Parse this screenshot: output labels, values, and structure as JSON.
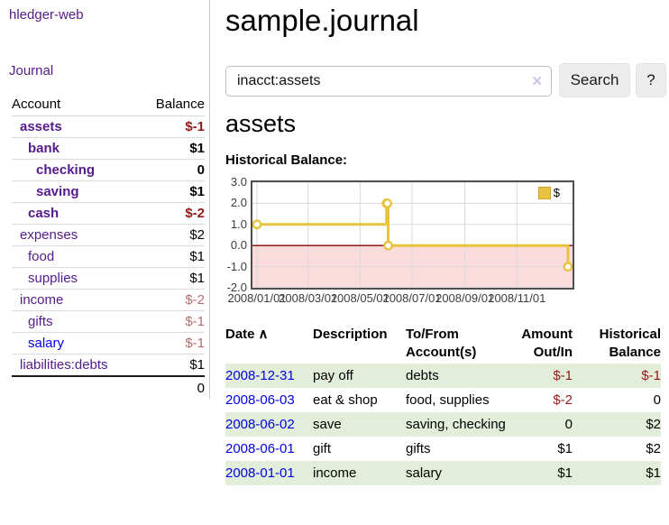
{
  "app": {
    "title": "hledger-web"
  },
  "sidebar": {
    "journal_link": "Journal",
    "table": {
      "col_account": "Account",
      "col_balance": "Balance",
      "accounts": [
        {
          "name": "assets",
          "balance": "$-1"
        },
        {
          "name": "bank",
          "balance": "$1"
        },
        {
          "name": "checking",
          "balance": "0"
        },
        {
          "name": "saving",
          "balance": "$1"
        },
        {
          "name": "cash",
          "balance": "$-2"
        },
        {
          "name": "expenses",
          "balance": "$2"
        },
        {
          "name": "food",
          "balance": "$1"
        },
        {
          "name": "supplies",
          "balance": "$1"
        },
        {
          "name": "income",
          "balance": "$-2"
        },
        {
          "name": "gifts",
          "balance": "$-1"
        },
        {
          "name": "salary",
          "balance": "$-1"
        },
        {
          "name": "liabilities:debts",
          "balance": "$1"
        }
      ],
      "total": "0"
    }
  },
  "header": {
    "title": "sample.journal",
    "search": {
      "value": "inacct:assets",
      "clear": "✕",
      "button": "Search",
      "help": "?"
    }
  },
  "account_page": {
    "heading": "assets"
  },
  "chart_data": {
    "type": "line",
    "step": true,
    "title": "Historical Balance:",
    "legend": "$",
    "x_start": "2008-01-01",
    "x_end": "2008-12-31",
    "ylim": [
      -2,
      3
    ],
    "yticks": [
      "3.0",
      "2.0",
      "1.0",
      "0.0",
      "-1.0",
      "-2.0"
    ],
    "xticks": [
      "2008/01/01",
      "2008/03/01",
      "2008/05/01",
      "2008/07/01",
      "2008/09/01",
      "2008/11/01"
    ],
    "negative_fill": "#fbdcdc",
    "zero_line_color": "#8b0000",
    "grid_color": "#dadada",
    "series": [
      {
        "name": "$",
        "color": "#e8c33f",
        "points": [
          [
            "2008-01-01",
            1
          ],
          [
            "2008-06-01",
            2
          ],
          [
            "2008-06-02",
            2
          ],
          [
            "2008-06-03",
            0
          ],
          [
            "2008-12-31",
            -1
          ]
        ]
      }
    ]
  },
  "register": {
    "columns": {
      "date": "Date",
      "description": "Description",
      "accounts": "To/From Account(s)",
      "amount": "Amount Out/In",
      "balance": "Historical Balance"
    },
    "sort_indicator": "∧",
    "rows": [
      {
        "date": "2008-12-31",
        "description": "pay off",
        "accounts": "debts",
        "amount": "$-1",
        "balance": "$-1"
      },
      {
        "date": "2008-06-03",
        "description": "eat & shop",
        "accounts": "food, supplies",
        "amount": "$-2",
        "balance": "0"
      },
      {
        "date": "2008-06-02",
        "description": "save",
        "accounts": "saving, checking",
        "amount": "0",
        "balance": "$2"
      },
      {
        "date": "2008-06-01",
        "description": "gift",
        "accounts": "gifts",
        "amount": "$1",
        "balance": "$2"
      },
      {
        "date": "2008-01-01",
        "description": "income",
        "accounts": "salary",
        "amount": "$1",
        "balance": "$1"
      }
    ]
  },
  "colors": {
    "link_visited": "#551a8b",
    "link_unvisited": "#0000ee",
    "negative_strong": "#941a1a",
    "negative_soft": "#b76c6c",
    "stripe_green": "#e2eeda",
    "series_gold": "#e8c33f"
  }
}
